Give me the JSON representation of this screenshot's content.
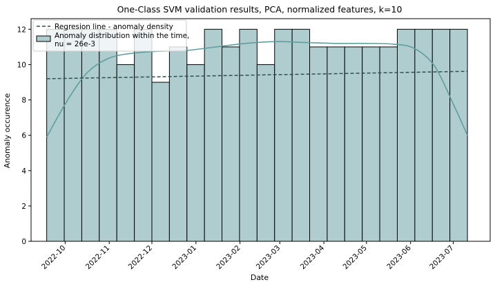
{
  "chart_data": {
    "type": "bar",
    "title": "One-Class SVM validation results, PCA, normalized features, k=10",
    "xlabel": "Date",
    "ylabel": "Anomaly occurence",
    "ylim": [
      0,
      12.6
    ],
    "xlim": [
      "2022-09-07",
      "2023-07-27"
    ],
    "yticks": [
      0,
      2,
      4,
      6,
      8,
      10,
      12
    ],
    "xticks": [
      "2022-10",
      "2022-11",
      "2022-12",
      "2023-01",
      "2023-02",
      "2023-03",
      "2023-04",
      "2023-05",
      "2023-06",
      "2023-07"
    ],
    "bin_start": "2022-09-18",
    "bin_end": "2023-07-11",
    "bin_values": [
      12,
      12,
      12,
      12,
      10,
      12,
      9,
      11,
      10,
      12,
      11,
      12,
      10,
      12,
      12,
      11,
      11,
      11,
      11,
      11,
      12,
      12,
      12,
      12
    ],
    "regression_line": {
      "x": [
        "2022-09-18",
        "2023-07-11"
      ],
      "y": [
        9.2,
        9.62
      ]
    },
    "density_curve": {
      "x": [
        "2022-09-18",
        "2022-10-02",
        "2022-10-16",
        "2022-10-30",
        "2022-11-13",
        "2022-12-04",
        "2022-12-25",
        "2023-01-15",
        "2023-02-05",
        "2023-02-26",
        "2023-03-19",
        "2023-04-09",
        "2023-04-30",
        "2023-05-21",
        "2023-06-04",
        "2023-06-18",
        "2023-07-02",
        "2023-07-11"
      ],
      "y": [
        5.9,
        7.9,
        9.5,
        10.3,
        10.6,
        10.75,
        10.8,
        11.0,
        11.2,
        11.3,
        11.25,
        11.2,
        11.2,
        11.15,
        10.9,
        9.9,
        7.6,
        6.0
      ]
    },
    "legend": {
      "position": "top-left",
      "entries": [
        {
          "label": "Regresion line - anomaly density",
          "kind": "dashed-line"
        },
        {
          "label": "Anomaly distribution within the time,\nnu = 26e-3",
          "kind": "patch"
        }
      ]
    },
    "colors": {
      "bar_fill": "#afcdcf",
      "bar_edge": "#000000",
      "kde_line": "#5f9ea0",
      "regression_line": "#2f4f4f"
    },
    "grid": false
  }
}
